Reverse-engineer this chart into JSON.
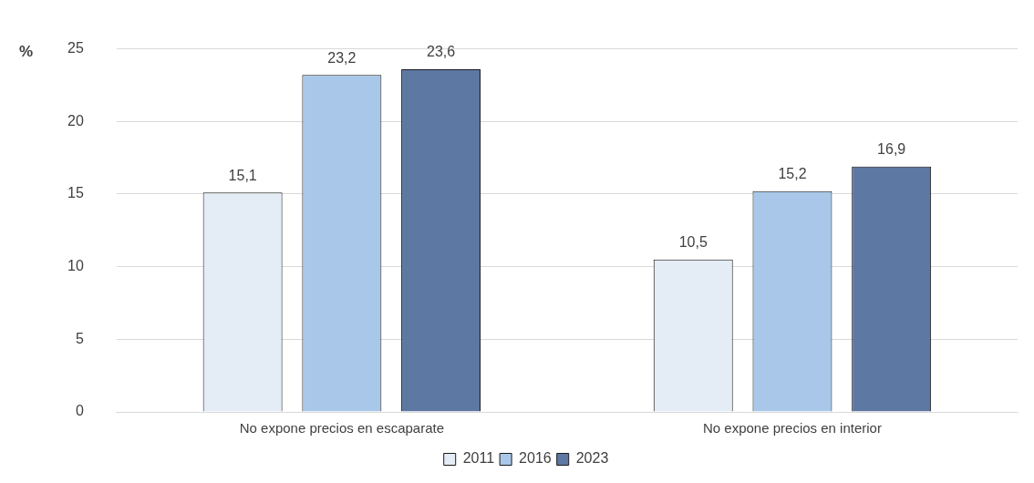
{
  "chart_data": {
    "type": "bar",
    "ylabel": "%",
    "categories": [
      "No expone precios en escaparate",
      "No expone precios en interior"
    ],
    "series": [
      {
        "name": "2011",
        "color": "#e4ecf6",
        "values": [
          15.1,
          10.5
        ],
        "value_labels": [
          "15,1",
          "10,5"
        ]
      },
      {
        "name": "2016",
        "color": "#a9c8e9",
        "values": [
          23.2,
          15.2
        ],
        "value_labels": [
          "23,2",
          "15,2"
        ]
      },
      {
        "name": "2023",
        "color": "#5d78a3",
        "values": [
          23.6,
          16.9
        ],
        "value_labels": [
          "23,6",
          "16,9"
        ]
      }
    ],
    "ylim": [
      0,
      25
    ],
    "yticks": [
      0,
      5,
      10,
      15,
      20,
      25
    ],
    "grid": "y",
    "legend": "bottom"
  }
}
